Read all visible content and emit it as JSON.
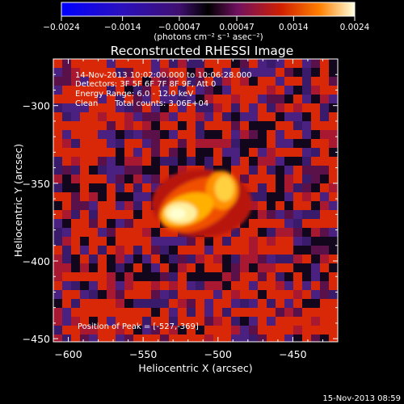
{
  "chart_data": {
    "type": "heatmap",
    "title": "Reconstructed RHESSI Image",
    "xlabel": "Heliocentric X (arcsec)",
    "ylabel": "Heliocentric Y (arcsec)",
    "xlim": [
      -610,
      -420
    ],
    "ylim": [
      -452,
      -270
    ],
    "x_ticks": [
      -600,
      -550,
      -500,
      -450
    ],
    "y_ticks": [
      -300,
      -350,
      -400,
      -450
    ],
    "x_tick_labels": [
      "−600",
      "−550",
      "−500",
      "−450"
    ],
    "y_tick_labels": [
      "−300",
      "−350",
      "−400",
      "−450"
    ],
    "colorbar": {
      "range": [
        -0.0024,
        0.0024
      ],
      "ticks": [
        -0.0024,
        -0.0014,
        -0.00047,
        0.00047,
        0.0014,
        0.0024
      ],
      "tick_labels": [
        "−0.0024",
        "−0.0014",
        "−0.00047",
        "0.00047",
        "0.0014",
        "0.0024"
      ],
      "units": "(photons cm⁻² s⁻¹ asec⁻²)"
    },
    "annotations": {
      "time_range": "14-Nov-2013 10:02:00.000 to 10:06:28.000",
      "detectors": "Detectors: 3F 5F 6F 7F 8F 9F, Att 0",
      "energy": "Energy Range: 6.0 - 12.0 keV",
      "method": "Clean",
      "counts": "Total counts: 3.06E+04",
      "peak": "Position of Peak = [-527,-369]"
    },
    "peak_position": [
      -527,
      -369
    ],
    "colors": {
      "bright": "#ffffd0",
      "positive": "#ff4000",
      "negative": "#5a2a8a",
      "background": "#000000"
    }
  },
  "footer": {
    "timestamp": "15-Nov-2013 08:59"
  }
}
